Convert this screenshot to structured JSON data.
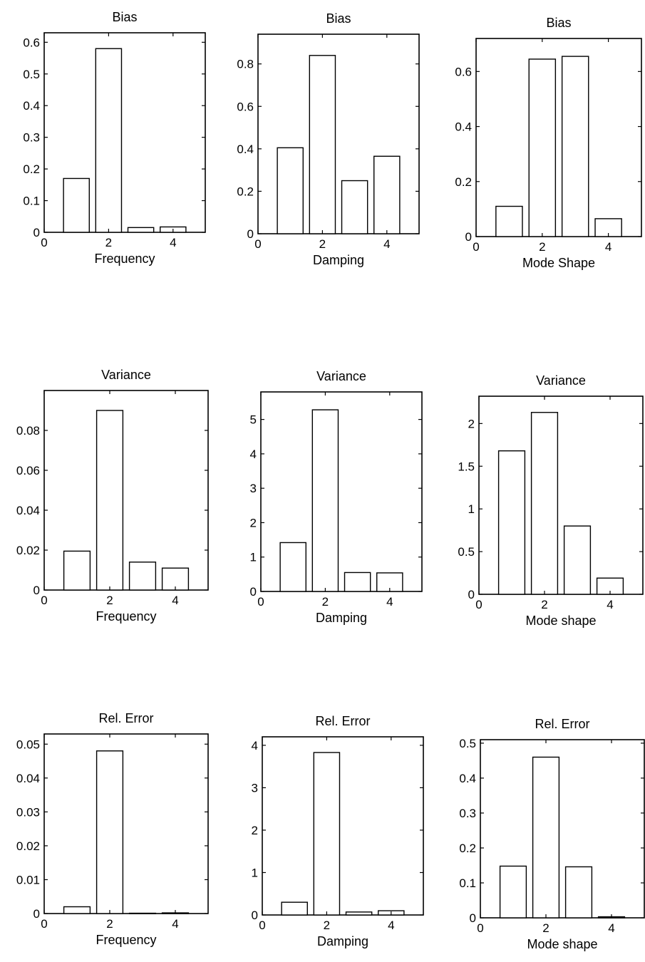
{
  "chart_data": [
    {
      "type": "bar",
      "title": "Bias",
      "xlabel": "Frequency",
      "ylabel": "",
      "x": [
        1,
        2,
        3,
        4
      ],
      "values": [
        0.17,
        0.58,
        0.015,
        0.017
      ],
      "xlim": [
        0,
        5
      ],
      "ylim": [
        0,
        0.63
      ],
      "xticks": [
        "0",
        "2",
        "4"
      ],
      "xtick_values": [
        0,
        2,
        4
      ],
      "yticks": [
        "0",
        "0.1",
        "0.2",
        "0.3",
        "0.4",
        "0.5",
        "0.6"
      ],
      "ytick_values": [
        0,
        0.1,
        0.2,
        0.3,
        0.4,
        0.5,
        0.6
      ],
      "grid": false
    },
    {
      "type": "bar",
      "title": "Bias",
      "xlabel": "Damping",
      "ylabel": "",
      "x": [
        1,
        2,
        3,
        4
      ],
      "values": [
        0.405,
        0.84,
        0.25,
        0.365
      ],
      "xlim": [
        0,
        5
      ],
      "ylim": [
        0,
        0.94
      ],
      "xticks": [
        "0",
        "2",
        "4"
      ],
      "xtick_values": [
        0,
        2,
        4
      ],
      "yticks": [
        "0",
        "0.2",
        "0.4",
        "0.6",
        "0.8"
      ],
      "ytick_values": [
        0,
        0.2,
        0.4,
        0.6,
        0.8
      ],
      "grid": false
    },
    {
      "type": "bar",
      "title": "Bias",
      "xlabel": "Mode Shape",
      "ylabel": "",
      "x": [
        1,
        2,
        3,
        4
      ],
      "values": [
        0.11,
        0.645,
        0.655,
        0.065
      ],
      "xlim": [
        0,
        5
      ],
      "ylim": [
        0,
        0.72
      ],
      "xticks": [
        "0",
        "2",
        "4"
      ],
      "xtick_values": [
        0,
        2,
        4
      ],
      "yticks": [
        "0",
        "0.2",
        "0.4",
        "0.6"
      ],
      "ytick_values": [
        0,
        0.2,
        0.4,
        0.6
      ],
      "grid": false
    },
    {
      "type": "bar",
      "title": "Variance",
      "xlabel": "Frequency",
      "ylabel": "",
      "x": [
        1,
        2,
        3,
        4
      ],
      "values": [
        0.0195,
        0.09,
        0.014,
        0.011
      ],
      "xlim": [
        0,
        5
      ],
      "ylim": [
        0,
        0.1
      ],
      "xticks": [
        "0",
        "2",
        "4"
      ],
      "xtick_values": [
        0,
        2,
        4
      ],
      "yticks": [
        "0",
        "0.02",
        "0.04",
        "0.06",
        "0.08"
      ],
      "ytick_values": [
        0,
        0.02,
        0.04,
        0.06,
        0.08
      ],
      "grid": false
    },
    {
      "type": "bar",
      "title": "Variance",
      "xlabel": "Damping",
      "ylabel": "",
      "x": [
        1,
        2,
        3,
        4
      ],
      "values": [
        1.42,
        5.28,
        0.55,
        0.54
      ],
      "xlim": [
        0,
        5
      ],
      "ylim": [
        0,
        5.8
      ],
      "xticks": [
        "0",
        "2",
        "4"
      ],
      "xtick_values": [
        0,
        2,
        4
      ],
      "yticks": [
        "0",
        "1",
        "2",
        "3",
        "4",
        "5"
      ],
      "ytick_values": [
        0,
        1,
        2,
        3,
        4,
        5
      ],
      "grid": false
    },
    {
      "type": "bar",
      "title": "Variance",
      "xlabel": "Mode shape",
      "ylabel": "",
      "x": [
        1,
        2,
        3,
        4
      ],
      "values": [
        1.68,
        2.13,
        0.8,
        0.19
      ],
      "xlim": [
        0,
        5
      ],
      "ylim": [
        0,
        2.32
      ],
      "xticks": [
        "0",
        "2",
        "4"
      ],
      "xtick_values": [
        0,
        2,
        4
      ],
      "yticks": [
        "0",
        "0.5",
        "1",
        "1.5",
        "2"
      ],
      "ytick_values": [
        0,
        0.5,
        1,
        1.5,
        2
      ],
      "grid": false
    },
    {
      "type": "bar",
      "title": "Rel. Error",
      "xlabel": "Frequency",
      "ylabel": "",
      "x": [
        1,
        2,
        3,
        4
      ],
      "values": [
        0.002,
        0.048,
        0.0001,
        0.0002
      ],
      "xlim": [
        0,
        5
      ],
      "ylim": [
        0,
        0.053
      ],
      "xticks": [
        "0",
        "2",
        "4"
      ],
      "xtick_values": [
        0,
        2,
        4
      ],
      "yticks": [
        "0",
        "0.01",
        "0.02",
        "0.03",
        "0.04",
        "0.05"
      ],
      "ytick_values": [
        0,
        0.01,
        0.02,
        0.03,
        0.04,
        0.05
      ],
      "grid": false
    },
    {
      "type": "bar",
      "title": "Rel. Error",
      "xlabel": "Damping",
      "ylabel": "",
      "x": [
        1,
        2,
        3,
        4
      ],
      "values": [
        0.3,
        3.83,
        0.07,
        0.1
      ],
      "xlim": [
        0,
        5
      ],
      "ylim": [
        0,
        4.2
      ],
      "xticks": [
        "0",
        "2",
        "4"
      ],
      "xtick_values": [
        0,
        2,
        4
      ],
      "yticks": [
        "0",
        "1",
        "2",
        "3",
        "4"
      ],
      "ytick_values": [
        0,
        1,
        2,
        3,
        4
      ],
      "grid": false
    },
    {
      "type": "bar",
      "title": "Rel. Error",
      "xlabel": "Mode shape",
      "ylabel": "",
      "x": [
        1,
        2,
        3,
        4
      ],
      "values": [
        0.148,
        0.46,
        0.146,
        0.003
      ],
      "xlim": [
        0,
        5
      ],
      "ylim": [
        0,
        0.51
      ],
      "xticks": [
        "0",
        "2",
        "4"
      ],
      "xtick_values": [
        0,
        2,
        4
      ],
      "yticks": [
        "0",
        "0.1",
        "0.2",
        "0.3",
        "0.4",
        "0.5"
      ],
      "ytick_values": [
        0,
        0.1,
        0.2,
        0.3,
        0.4,
        0.5
      ],
      "grid": false
    }
  ]
}
